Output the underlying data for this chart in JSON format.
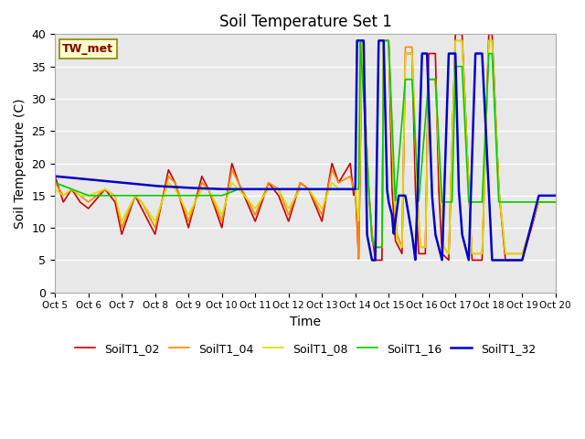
{
  "title": "Soil Temperature Set 1",
  "xlabel": "Time",
  "ylabel": "Soil Temperature (C)",
  "ylim": [
    0,
    40
  ],
  "plot_bg": "#e8e8e8",
  "grid_color": "#ffffff",
  "series": {
    "SoilT1_02": {
      "color": "#cc0000",
      "lw": 1.2
    },
    "SoilT1_04": {
      "color": "#ff8800",
      "lw": 1.2
    },
    "SoilT1_08": {
      "color": "#dddd00",
      "lw": 1.2
    },
    "SoilT1_16": {
      "color": "#00cc00",
      "lw": 1.2
    },
    "SoilT1_32": {
      "color": "#0000cc",
      "lw": 1.8
    }
  },
  "xtick_labels": [
    "Oct 5",
    "Oct 6",
    "Oct 7",
    "Oct 8",
    "Oct 9",
    "Oct 10",
    "Oct 11",
    "Oct 12",
    "Oct 13",
    "Oct 14",
    "Oct 15",
    "Oct 16",
    "Oct 17",
    "Oct 18",
    "Oct 19",
    "Oct 20"
  ],
  "ytick_vals": [
    0,
    5,
    10,
    15,
    20,
    25,
    30,
    35,
    40
  ],
  "annotation": "TW_met",
  "annotation_color": "#880000",
  "annotation_bg": "#ffffcc",
  "annotation_edge": "#888800"
}
